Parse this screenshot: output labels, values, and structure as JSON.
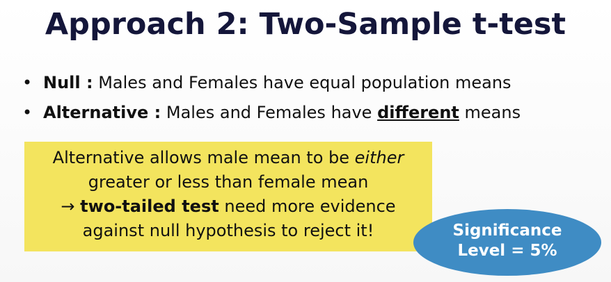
{
  "slide": {
    "title": "Approach 2: Two-Sample t-test",
    "bullets": [
      {
        "marker": "•",
        "term": "Null :",
        "text": "Males and Females have equal population means"
      },
      {
        "marker": "•",
        "term": "Alternative :",
        "text_before": "Males and Females have",
        "emphasis": "different",
        "text_after": "means"
      }
    ],
    "callout": {
      "line1_before": "Alternative allows male mean to be",
      "line1_italic": "either",
      "line2": "greater or less than female mean",
      "line3_arrow": "→",
      "line3_bold": "two-tailed test",
      "line3_after": "need more evidence",
      "line4": "against null hypothesis to reject it!",
      "background_color": "#f3e45e"
    },
    "badge": {
      "line1": "Significance",
      "line2": "Level = 5%",
      "background_color": "#3f8cc4"
    }
  }
}
